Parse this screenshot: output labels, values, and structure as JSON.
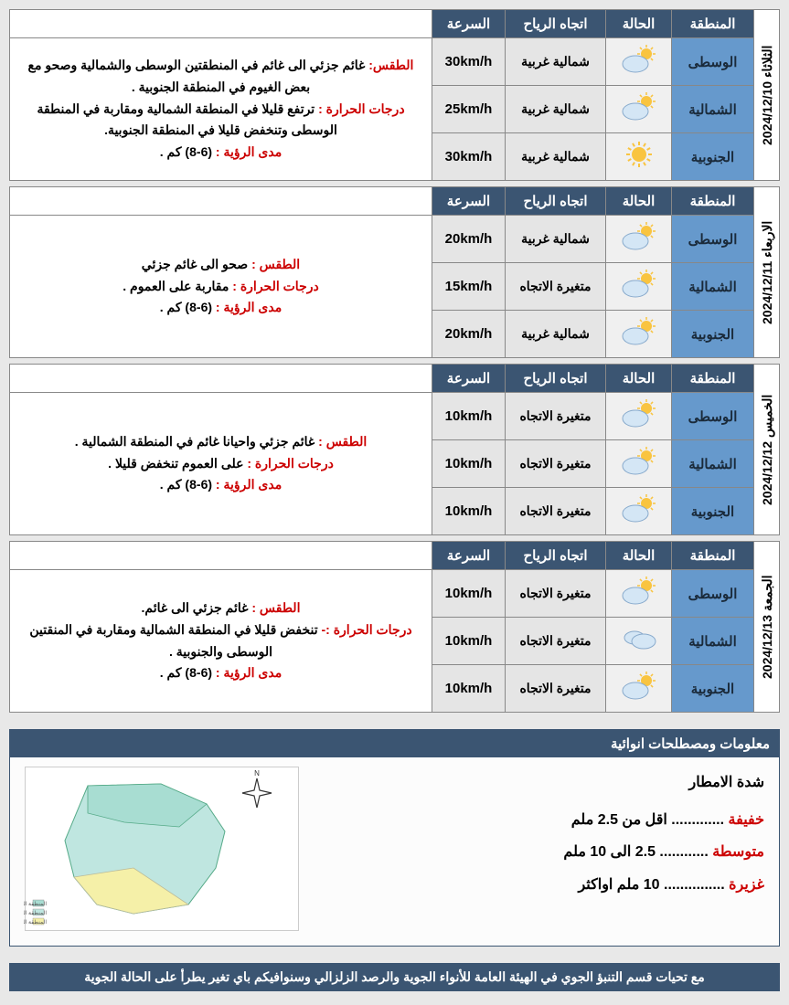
{
  "headers": {
    "region": "المنطقة",
    "condition": "الحالة",
    "wind": "اتجاه الرياح",
    "speed": "السرعة"
  },
  "days": [
    {
      "date": "الثلاثاء 2024/12/10",
      "rows": [
        {
          "region": "الوسطى",
          "icon": "partly",
          "wind": "شمالية غربية",
          "speed": "30km/h"
        },
        {
          "region": "الشمالية",
          "icon": "partly",
          "wind": "شمالية غربية",
          "speed": "25km/h"
        },
        {
          "region": "الجنوبية",
          "icon": "sunny",
          "wind": "شمالية غربية",
          "speed": "30km/h"
        }
      ],
      "desc": [
        {
          "lbl": "الطقس:",
          "txt": " غائم جزئي الى غائم في المنطقتين الوسطى والشمالية وصحو مع بعض الغيوم في المنطقة الجنوبية ."
        },
        {
          "lbl": "درجات الحرارة :",
          "txt": " ترتفع قليلا في المنطقة الشمالية ومقاربة في المنطقة الوسطى وتنخفض قليلا في المنطقة الجنوبية."
        },
        {
          "lbl": "مدى الرؤية :",
          "txt": " (6-8) كم ."
        }
      ]
    },
    {
      "date": "الاربعاء 2024/12/11",
      "rows": [
        {
          "region": "الوسطى",
          "icon": "partly",
          "wind": "شمالية غربية",
          "speed": "20km/h"
        },
        {
          "region": "الشمالية",
          "icon": "partly",
          "wind": "متغيرة الاتجاه",
          "speed": "15km/h"
        },
        {
          "region": "الجنوبية",
          "icon": "partly",
          "wind": "شمالية غربية",
          "speed": "20km/h"
        }
      ],
      "desc": [
        {
          "lbl": "الطقس :",
          "txt": " صحو الى غائم جزئي"
        },
        {
          "lbl": "درجات الحرارة :",
          "txt": " مقاربة على العموم ."
        },
        {
          "lbl": "مدى الرؤية :",
          "txt": " (6-8) كم ."
        }
      ]
    },
    {
      "date": "الخميس 2024/12/12",
      "rows": [
        {
          "region": "الوسطى",
          "icon": "partly",
          "wind": "متغيرة الاتجاه",
          "speed": "10km/h"
        },
        {
          "region": "الشمالية",
          "icon": "partly",
          "wind": "متغيرة الاتجاه",
          "speed": "10km/h"
        },
        {
          "region": "الجنوبية",
          "icon": "partly",
          "wind": "متغيرة الاتجاه",
          "speed": "10km/h"
        }
      ],
      "desc": [
        {
          "lbl": "الطقس :",
          "txt": " غائم جزئي واحيانا غائم في المنطقة الشمالية ."
        },
        {
          "lbl": "درجات الحرارة :",
          "txt": " على العموم تنخفض قليلا ."
        },
        {
          "lbl": "مدى الرؤية :",
          "txt": " (6-8) كم ."
        }
      ]
    },
    {
      "date": "الجمعة 2024/12/13",
      "rows": [
        {
          "region": "الوسطى",
          "icon": "partly",
          "wind": "متغيرة الاتجاه",
          "speed": "10km/h"
        },
        {
          "region": "الشمالية",
          "icon": "cloudy",
          "wind": "متغيرة الاتجاه",
          "speed": "10km/h"
        },
        {
          "region": "الجنوبية",
          "icon": "partly",
          "wind": "متغيرة الاتجاه",
          "speed": "10km/h"
        }
      ],
      "desc": [
        {
          "lbl": "الطقس :",
          "txt": " غائم جزئي الى غائم."
        },
        {
          "lbl": "درجات الحرارة :-",
          "txt": " تنخفض قليلا في المنطقة الشمالية ومقاربة في المنقتين الوسطى والجنوبية ."
        },
        {
          "lbl": "مدى الرؤية :",
          "txt": " (6-8) كم ."
        }
      ]
    }
  ],
  "info": {
    "title": "معلومات ومصطلحات انوائية",
    "heading": "شدة الامطار",
    "items": [
      {
        "level": "خفيفة",
        "dots": " ............. ",
        "txt": "اقل من 2.5  ملم"
      },
      {
        "level": "متوسطة",
        "dots": " ............ ",
        "txt": "2.5 الى 10 ملم"
      },
      {
        "level": "غزيرة",
        "dots": " ............... ",
        "txt": "10 ملم اواكثر"
      }
    ]
  },
  "footer": "مع تحيات قسم التنبؤ الجوي في الهيئة العامة للأنواء الجوية والرصد الزلزالي وسنوافيكم  باي تغير يطرأ على الحالة الجوية",
  "colors": {
    "header": "#3b5572",
    "region": "#6699cc",
    "label": "#c00",
    "sun": "#f9c440",
    "cloud": "#d4e6f5",
    "cloudStroke": "#88aacc"
  }
}
